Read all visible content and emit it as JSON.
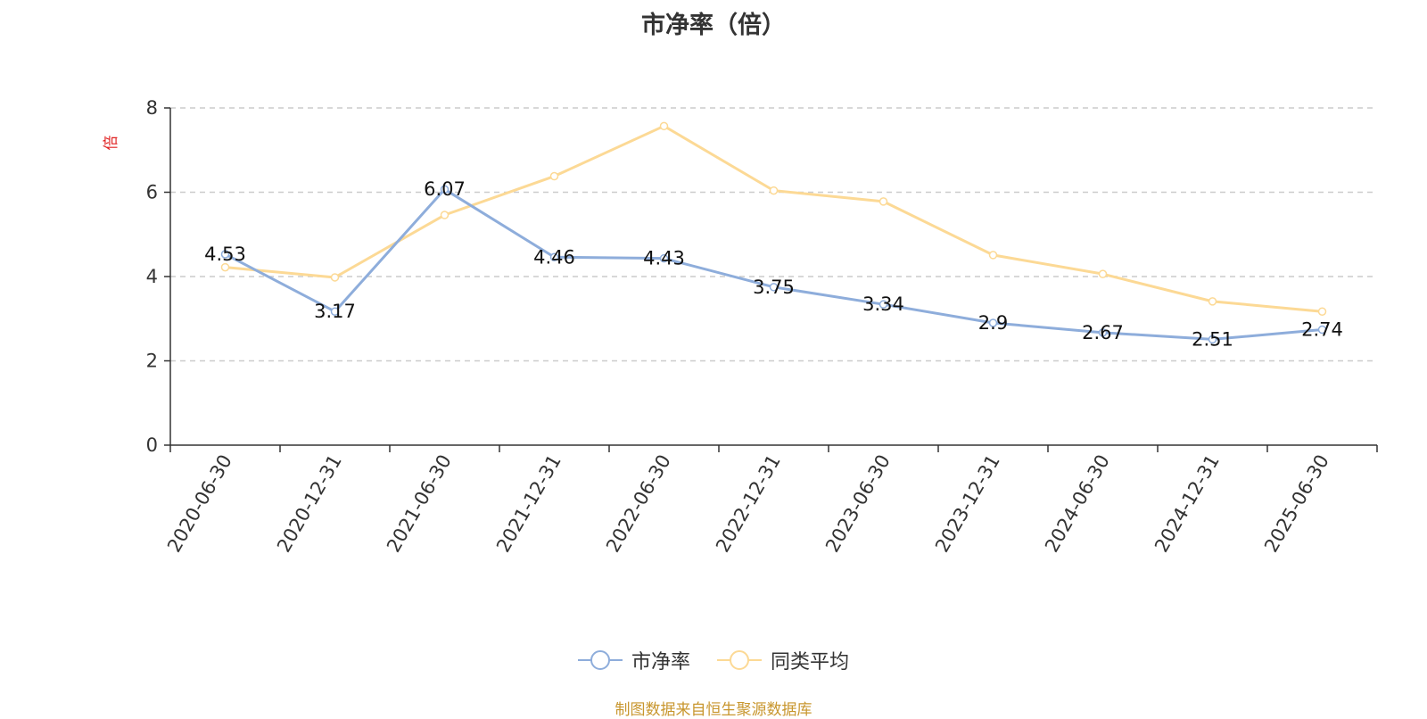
{
  "chart_data": {
    "type": "line",
    "title": "市净率（倍）",
    "ylabel": "倍",
    "ylim": [
      0,
      8
    ],
    "yticks": [
      0,
      2,
      4,
      6,
      8
    ],
    "grid": true,
    "legend_position": "bottom",
    "categories": [
      "2020-06-30",
      "2020-12-31",
      "2021-06-30",
      "2021-12-31",
      "2022-06-30",
      "2022-12-31",
      "2023-06-30",
      "2023-12-31",
      "2024-06-30",
      "2024-12-31",
      "2025-06-30"
    ],
    "series": [
      {
        "name": "市净率",
        "color": "#8eaddb",
        "show_labels": true,
        "values": [
          4.53,
          3.17,
          6.07,
          4.46,
          4.43,
          3.75,
          3.34,
          2.9,
          2.67,
          2.51,
          2.74
        ]
      },
      {
        "name": "同类平均",
        "color": "#fcd995",
        "show_labels": false,
        "values": [
          4.22,
          3.98,
          5.46,
          6.38,
          7.57,
          6.04,
          5.78,
          4.51,
          4.06,
          3.41,
          3.17
        ]
      }
    ]
  },
  "source": "制图数据来自恒生聚源数据库"
}
